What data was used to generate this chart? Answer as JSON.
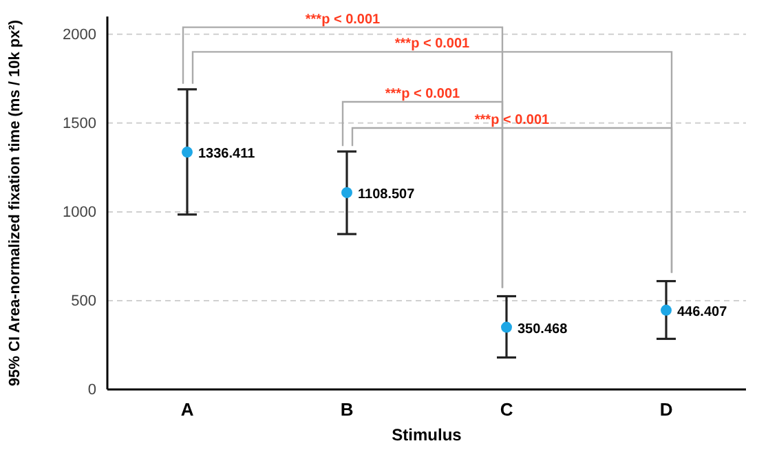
{
  "chart_data": {
    "type": "scatter",
    "xlabel": "Stimulus",
    "ylabel": "95% CI Area-normalized fixation time (ms / 10k px²)",
    "categories": [
      "A",
      "B",
      "C",
      "D"
    ],
    "values": [
      1336.411,
      1108.507,
      350.468,
      446.407
    ],
    "errors": [
      [
        985,
        1690
      ],
      [
        875,
        1340
      ],
      [
        180,
        525
      ],
      [
        285,
        610
      ]
    ],
    "color": "#1ea7e6",
    "marker": "circle",
    "data_labels": true,
    "ylim": [
      0,
      2100
    ],
    "yticks": [
      0,
      500,
      1000,
      1500,
      2000
    ],
    "grid": "y",
    "annotations": [
      "***p < 0.001",
      "***p < 0.001",
      "***p < 0.001",
      "***p < 0.001"
    ]
  }
}
